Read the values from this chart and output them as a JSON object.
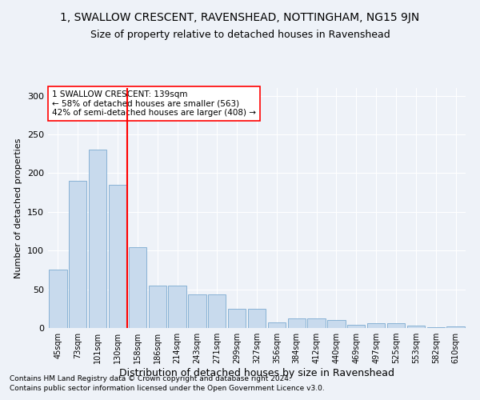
{
  "title": "1, SWALLOW CRESCENT, RAVENSHEAD, NOTTINGHAM, NG15 9JN",
  "subtitle": "Size of property relative to detached houses in Ravenshead",
  "xlabel": "Distribution of detached houses by size in Ravenshead",
  "ylabel": "Number of detached properties",
  "categories": [
    "45sqm",
    "73sqm",
    "101sqm",
    "130sqm",
    "158sqm",
    "186sqm",
    "214sqm",
    "243sqm",
    "271sqm",
    "299sqm",
    "327sqm",
    "356sqm",
    "384sqm",
    "412sqm",
    "440sqm",
    "469sqm",
    "497sqm",
    "525sqm",
    "553sqm",
    "582sqm",
    "610sqm"
  ],
  "values": [
    75,
    190,
    230,
    185,
    104,
    55,
    55,
    43,
    43,
    25,
    25,
    7,
    12,
    12,
    10,
    4,
    6,
    6,
    3,
    1,
    2
  ],
  "bar_color": "#c8daed",
  "bar_edge_color": "#7baad0",
  "vline_x": 3.5,
  "vline_color": "red",
  "annotation_text": "1 SWALLOW CRESCENT: 139sqm\n← 58% of detached houses are smaller (563)\n42% of semi-detached houses are larger (408) →",
  "annotation_box_color": "white",
  "annotation_box_edge": "red",
  "footnote1": "Contains HM Land Registry data © Crown copyright and database right 2024.",
  "footnote2": "Contains public sector information licensed under the Open Government Licence v3.0.",
  "ylim": [
    0,
    310
  ],
  "yticks": [
    0,
    50,
    100,
    150,
    200,
    250,
    300
  ],
  "title_fontsize": 10,
  "subtitle_fontsize": 9,
  "xlabel_fontsize": 9,
  "ylabel_fontsize": 8,
  "tick_fontsize": 7,
  "annot_fontsize": 7.5,
  "footnote_fontsize": 6.5,
  "background_color": "#eef2f8",
  "grid_color": "#ffffff"
}
